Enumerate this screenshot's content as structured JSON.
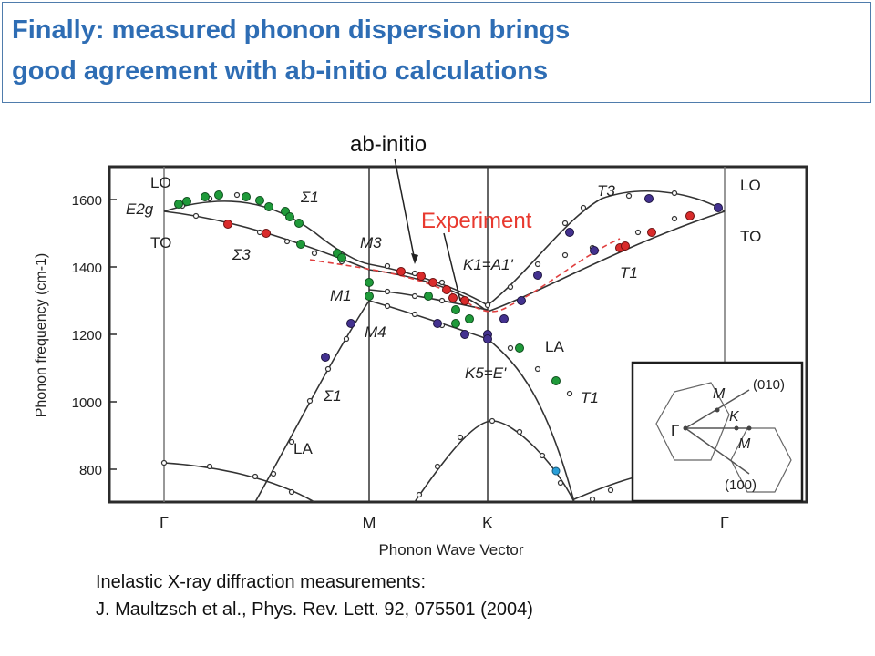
{
  "slide": {
    "title_line1": "Finally: measured phonon dispersion brings",
    "title_line2": "good agreement with ab-initio calculations",
    "caption_line1": "Inelastic X-ray diffraction measurements:",
    "caption_line2": "J. Maultzsch et al., Phys. Rev. Lett. 92, 075501 (2004)",
    "callout_abinitio": "ab-initio",
    "callout_experiment": "Experiment"
  },
  "colors": {
    "title": "#2e6db4",
    "experiment_label": "#e8392f",
    "red_points": "#d92b2b",
    "green_points": "#1f9a3a",
    "purple_points": "#43318f",
    "frame": "#2b2b2b"
  },
  "chart_data": {
    "type": "line",
    "xlabel": "Phonon Wave Vector",
    "ylabel": "Phonon frequency (cm-1)",
    "ylim": [
      700,
      1700
    ],
    "ytick_labels": [
      "800",
      "1000",
      "1200",
      "1400",
      "1600"
    ],
    "x_points": [
      "Γ",
      "M",
      "K",
      "Γ"
    ],
    "branch_labels": {
      "lo": "LO",
      "to_left": "TO",
      "e2g": "E2g",
      "sigma1_top": "Σ1",
      "sigma3": "Σ3",
      "m3": "M3",
      "m1": "M1",
      "m4": "M4",
      "k1": "K1=A1'",
      "k5": "K5=E'",
      "t3": "T3",
      "t1_right": "T1",
      "lo_right": "LO",
      "to_right": "TO",
      "la_mk": "LA",
      "t1_lower": "T1",
      "sigma1_lower": "Σ1",
      "la_lower": "LA"
    },
    "inset": {
      "gamma": "Γ",
      "m_top": "M",
      "m_bottom": "M",
      "k": "K",
      "dir_010": "(010)",
      "dir_100": "(100)"
    },
    "calculated_branches": [
      {
        "name": "LO",
        "points": [
          [
            0,
            1565
          ],
          [
            0.1,
            1583
          ],
          [
            0.2,
            1575
          ],
          [
            0.3,
            1510
          ],
          [
            0.4,
            1455
          ],
          [
            0.5,
            1425
          ],
          [
            0.6,
            1405
          ],
          [
            0.7,
            1390
          ],
          [
            0.8,
            1372
          ],
          [
            0.9,
            1340
          ],
          [
            1,
            1292
          ],
          [
            1.1,
            1360
          ],
          [
            1.2,
            1440
          ],
          [
            1.3,
            1510
          ],
          [
            1.4,
            1570
          ],
          [
            1.5,
            1600
          ],
          [
            1.6,
            1608
          ],
          [
            1.7,
            1595
          ],
          [
            1.8,
            1565
          ]
        ]
      },
      {
        "name": "TO",
        "points": [
          [
            0,
            1565
          ],
          [
            0.1,
            1545
          ],
          [
            0.2,
            1510
          ],
          [
            0.3,
            1465
          ],
          [
            0.4,
            1420
          ],
          [
            0.5,
            1395
          ],
          [
            0.6,
            1380
          ],
          [
            0.7,
            1352
          ],
          [
            0.8,
            1330
          ],
          [
            0.9,
            1300
          ],
          [
            1,
            1265
          ],
          [
            1.1,
            1320
          ],
          [
            1.2,
            1385
          ],
          [
            1.3,
            1440
          ],
          [
            1.4,
            1482
          ],
          [
            1.5,
            1520
          ],
          [
            1.6,
            1545
          ],
          [
            1.7,
            1562
          ],
          [
            1.8,
            1565
          ]
        ]
      },
      {
        "name": "M1-K",
        "points": [
          [
            1,
            1332
          ],
          [
            1.1,
            1315
          ],
          [
            1.2,
            1298
          ],
          [
            1.3,
            1280
          ],
          [
            1.4,
            1265
          ],
          [
            1.5,
            1245
          ],
          [
            1.6,
            1225
          ],
          [
            1.7,
            1200
          ]
        ]
      },
      {
        "name": "M4-K",
        "points": [
          [
            1,
            1270
          ],
          [
            1.1,
            1240
          ],
          [
            1.2,
            1220
          ],
          [
            1.3,
            1195
          ],
          [
            1.4,
            1170
          ],
          [
            1.5,
            1110
          ],
          [
            1.6,
            1040
          ],
          [
            1.7,
            980
          ]
        ]
      },
      {
        "name": "LA",
        "points": [
          [
            0,
            700
          ],
          [
            0.5,
            1000
          ],
          [
            1,
            1245
          ],
          [
            1.25,
            1225
          ],
          [
            1.5,
            1200
          ],
          [
            1.7,
            1135
          ],
          [
            1.9,
            1050
          ],
          [
            2.1,
            955
          ],
          [
            2.3,
            850
          ],
          [
            2.5,
            740
          ]
        ]
      },
      {
        "name": "lower",
        "points": [
          [
            0,
            820
          ],
          [
            0.3,
            810
          ],
          [
            0.6,
            780
          ],
          [
            0.9,
            740
          ],
          [
            1,
            725
          ]
        ]
      },
      {
        "name": "TA-K",
        "points": [
          [
            1.6,
            700
          ],
          [
            1.85,
            800
          ],
          [
            2.1,
            910
          ],
          [
            2.25,
            945
          ],
          [
            2.4,
            910
          ],
          [
            2.65,
            800
          ],
          [
            2.9,
            700
          ]
        ]
      }
    ],
    "experiment_markers": {
      "green": [
        [
          0.12,
          1578
        ],
        [
          0.2,
          1592
        ],
        [
          0.3,
          1605
        ],
        [
          0.45,
          1600
        ],
        [
          0.55,
          1593
        ],
        [
          0.65,
          1585
        ],
        [
          0.8,
          1548
        ],
        [
          0.95,
          1488
        ],
        [
          1.25,
          1352
        ],
        [
          1.3,
          1340
        ],
        [
          1.5,
          1283
        ],
        [
          1.6,
          1260
        ]
      ],
      "red": [
        [
          0.75,
          1525
        ],
        [
          0.9,
          1500
        ],
        [
          1.2,
          1405
        ],
        [
          1.3,
          1400
        ],
        [
          1.45,
          1370
        ],
        [
          1.55,
          1345
        ],
        [
          1.7,
          1310
        ],
        [
          2.8,
          1470
        ],
        [
          2.9,
          1545
        ],
        [
          3.0,
          1555
        ]
      ],
      "purple": [
        [
          0.95,
          1240
        ],
        [
          1.05,
          1138
        ],
        [
          1.55,
          1218
        ],
        [
          1.7,
          1212
        ],
        [
          2.4,
          1296
        ],
        [
          2.5,
          1320
        ],
        [
          2.65,
          1440
        ],
        [
          2.75,
          1600
        ],
        [
          3.0,
          1575
        ]
      ]
    }
  }
}
